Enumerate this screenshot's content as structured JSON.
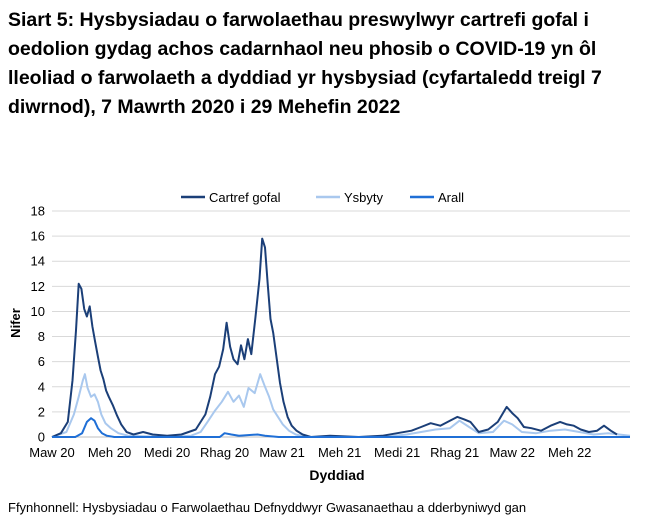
{
  "chart_data": {
    "type": "line",
    "title": "Siart 5: Hysbysiadau o farwolaethau preswylwyr cartrefi gofal i oedolion gydag achos cadarnhaol neu phosib o COVID-19 yn ôl lleoliad o farwolaeth a dyddiad yr hysbysiad (cyfartaledd treigl 7 diwrnod), 7 Mawrth 2020 i 29 Mehefin 2022",
    "xlabel": "Dyddiad",
    "ylabel": "Nifer",
    "ylim": [
      0,
      18
    ],
    "yticks": [
      0,
      2,
      4,
      6,
      8,
      10,
      12,
      14,
      16,
      18
    ],
    "xlim": [
      "2020-03-07",
      "2022-06-29"
    ],
    "xticks": [
      {
        "date": "2020-03-07",
        "label": "Maw 20"
      },
      {
        "date": "2020-05-30",
        "label": "Meh 20"
      },
      {
        "date": "2020-08-22",
        "label": "Medi 20"
      },
      {
        "date": "2020-11-14",
        "label": "Rhag 20"
      },
      {
        "date": "2021-02-06",
        "label": "Maw 21"
      },
      {
        "date": "2021-05-01",
        "label": "Meh 21"
      },
      {
        "date": "2021-07-24",
        "label": "Medi 21"
      },
      {
        "date": "2021-10-16",
        "label": "Rhag 21"
      },
      {
        "date": "2022-01-08",
        "label": "Maw 22"
      },
      {
        "date": "2022-04-02",
        "label": "Meh 22"
      }
    ],
    "grid": true,
    "legend_position": "top",
    "source": "Ffynhonnell: Hysbysiadau o Farwolaethau Defnyddwyr Gwasanaethau a dderbyniwyd gan",
    "series": [
      {
        "name": "Cartref gofal",
        "color": "#1b3f78",
        "points": [
          [
            "2020-03-07",
            0
          ],
          [
            "2020-03-20",
            0.3
          ],
          [
            "2020-03-30",
            1.2
          ],
          [
            "2020-04-06",
            4.5
          ],
          [
            "2020-04-11",
            8.5
          ],
          [
            "2020-04-15",
            12.2
          ],
          [
            "2020-04-19",
            11.8
          ],
          [
            "2020-04-23",
            10.2
          ],
          [
            "2020-04-27",
            9.6
          ],
          [
            "2020-05-01",
            10.4
          ],
          [
            "2020-05-05",
            8.8
          ],
          [
            "2020-05-09",
            7.6
          ],
          [
            "2020-05-13",
            6.4
          ],
          [
            "2020-05-17",
            5.3
          ],
          [
            "2020-05-21",
            4.6
          ],
          [
            "2020-05-25",
            3.7
          ],
          [
            "2020-05-29",
            3.2
          ],
          [
            "2020-06-04",
            2.5
          ],
          [
            "2020-06-10",
            1.7
          ],
          [
            "2020-06-16",
            1.0
          ],
          [
            "2020-06-24",
            0.4
          ],
          [
            "2020-07-04",
            0.2
          ],
          [
            "2020-07-18",
            0.4
          ],
          [
            "2020-08-01",
            0.2
          ],
          [
            "2020-08-22",
            0.1
          ],
          [
            "2020-09-12",
            0.2
          ],
          [
            "2020-10-03",
            0.6
          ],
          [
            "2020-10-17",
            1.8
          ],
          [
            "2020-10-24",
            3.2
          ],
          [
            "2020-10-31",
            5.0
          ],
          [
            "2020-11-06",
            5.6
          ],
          [
            "2020-11-12",
            7.0
          ],
          [
            "2020-11-17",
            9.1
          ],
          [
            "2020-11-22",
            7.2
          ],
          [
            "2020-11-27",
            6.2
          ],
          [
            "2020-12-03",
            5.8
          ],
          [
            "2020-12-08",
            7.3
          ],
          [
            "2020-12-13",
            6.2
          ],
          [
            "2020-12-18",
            7.8
          ],
          [
            "2020-12-23",
            6.6
          ],
          [
            "2020-12-29",
            9.5
          ],
          [
            "2021-01-04",
            12.6
          ],
          [
            "2021-01-08",
            15.8
          ],
          [
            "2021-01-12",
            15.1
          ],
          [
            "2021-01-16",
            12.2
          ],
          [
            "2021-01-20",
            9.4
          ],
          [
            "2021-01-24",
            8.3
          ],
          [
            "2021-01-29",
            6.3
          ],
          [
            "2021-02-03",
            4.3
          ],
          [
            "2021-02-08",
            2.8
          ],
          [
            "2021-02-14",
            1.6
          ],
          [
            "2021-02-20",
            0.9
          ],
          [
            "2021-02-27",
            0.5
          ],
          [
            "2021-03-08",
            0.2
          ],
          [
            "2021-03-20",
            0
          ],
          [
            "2021-04-17",
            0.1
          ],
          [
            "2021-05-29",
            0
          ],
          [
            "2021-07-03",
            0.1
          ],
          [
            "2021-07-24",
            0.3
          ],
          [
            "2021-08-14",
            0.5
          ],
          [
            "2021-08-28",
            0.8
          ],
          [
            "2021-09-11",
            1.1
          ],
          [
            "2021-09-25",
            0.9
          ],
          [
            "2021-10-09",
            1.3
          ],
          [
            "2021-10-20",
            1.6
          ],
          [
            "2021-10-30",
            1.4
          ],
          [
            "2021-11-08",
            1.2
          ],
          [
            "2021-11-20",
            0.4
          ],
          [
            "2021-12-04",
            0.6
          ],
          [
            "2021-12-18",
            1.2
          ],
          [
            "2021-12-31",
            2.4
          ],
          [
            "2022-01-08",
            1.9
          ],
          [
            "2022-01-16",
            1.5
          ],
          [
            "2022-01-25",
            0.8
          ],
          [
            "2022-02-05",
            0.7
          ],
          [
            "2022-02-19",
            0.5
          ],
          [
            "2022-03-05",
            0.9
          ],
          [
            "2022-03-19",
            1.2
          ],
          [
            "2022-03-29",
            1.0
          ],
          [
            "2022-04-08",
            0.9
          ],
          [
            "2022-04-18",
            0.6
          ],
          [
            "2022-04-30",
            0.4
          ],
          [
            "2022-05-12",
            0.5
          ],
          [
            "2022-05-22",
            0.9
          ],
          [
            "2022-06-01",
            0.5
          ],
          [
            "2022-06-10",
            0.2
          ]
        ]
      },
      {
        "name": "Ysbyty",
        "color": "#a9c8ee",
        "points": [
          [
            "2020-03-07",
            0
          ],
          [
            "2020-03-28",
            0.4
          ],
          [
            "2020-04-08",
            1.8
          ],
          [
            "2020-04-15",
            3.2
          ],
          [
            "2020-04-21",
            4.5
          ],
          [
            "2020-04-24",
            5.0
          ],
          [
            "2020-04-28",
            3.9
          ],
          [
            "2020-05-03",
            3.2
          ],
          [
            "2020-05-08",
            3.4
          ],
          [
            "2020-05-13",
            2.8
          ],
          [
            "2020-05-18",
            1.8
          ],
          [
            "2020-05-24",
            1.1
          ],
          [
            "2020-06-01",
            0.7
          ],
          [
            "2020-06-12",
            0.3
          ],
          [
            "2020-06-26",
            0.1
          ],
          [
            "2020-08-22",
            0
          ],
          [
            "2020-09-26",
            0.1
          ],
          [
            "2020-10-10",
            0.4
          ],
          [
            "2020-10-20",
            1.2
          ],
          [
            "2020-10-31",
            2.1
          ],
          [
            "2020-11-10",
            2.8
          ],
          [
            "2020-11-19",
            3.6
          ],
          [
            "2020-11-27",
            2.8
          ],
          [
            "2020-12-05",
            3.3
          ],
          [
            "2020-12-12",
            2.4
          ],
          [
            "2020-12-19",
            3.9
          ],
          [
            "2020-12-28",
            3.5
          ],
          [
            "2021-01-05",
            5.0
          ],
          [
            "2021-01-12",
            4.0
          ],
          [
            "2021-01-18",
            3.2
          ],
          [
            "2021-01-24",
            2.2
          ],
          [
            "2021-01-31",
            1.6
          ],
          [
            "2021-02-07",
            1.0
          ],
          [
            "2021-02-16",
            0.5
          ],
          [
            "2021-02-26",
            0.2
          ],
          [
            "2021-03-13",
            0
          ],
          [
            "2021-07-03",
            0
          ],
          [
            "2021-08-07",
            0.2
          ],
          [
            "2021-08-28",
            0.4
          ],
          [
            "2021-09-18",
            0.6
          ],
          [
            "2021-10-09",
            0.7
          ],
          [
            "2021-10-23",
            1.3
          ],
          [
            "2021-11-06",
            0.8
          ],
          [
            "2021-11-20",
            0.3
          ],
          [
            "2021-12-11",
            0.4
          ],
          [
            "2021-12-27",
            1.3
          ],
          [
            "2022-01-08",
            1.0
          ],
          [
            "2022-01-22",
            0.4
          ],
          [
            "2022-02-12",
            0.3
          ],
          [
            "2022-03-05",
            0.5
          ],
          [
            "2022-03-26",
            0.6
          ],
          [
            "2022-04-16",
            0.4
          ],
          [
            "2022-05-07",
            0.2
          ],
          [
            "2022-05-28",
            0.3
          ],
          [
            "2022-06-29",
            0.1
          ]
        ]
      },
      {
        "name": "Arall",
        "color": "#1f6fd6",
        "points": [
          [
            "2020-03-07",
            0
          ],
          [
            "2020-04-10",
            0
          ],
          [
            "2020-04-20",
            0.3
          ],
          [
            "2020-04-27",
            1.2
          ],
          [
            "2020-05-03",
            1.5
          ],
          [
            "2020-05-08",
            1.3
          ],
          [
            "2020-05-13",
            0.7
          ],
          [
            "2020-05-19",
            0.3
          ],
          [
            "2020-05-26",
            0.1
          ],
          [
            "2020-06-06",
            0
          ],
          [
            "2020-11-07",
            0
          ],
          [
            "2020-11-14",
            0.3
          ],
          [
            "2020-11-24",
            0.2
          ],
          [
            "2020-12-05",
            0.1
          ],
          [
            "2021-01-01",
            0.2
          ],
          [
            "2021-01-12",
            0.1
          ],
          [
            "2021-02-01",
            0
          ],
          [
            "2022-06-29",
            0
          ]
        ]
      }
    ]
  }
}
